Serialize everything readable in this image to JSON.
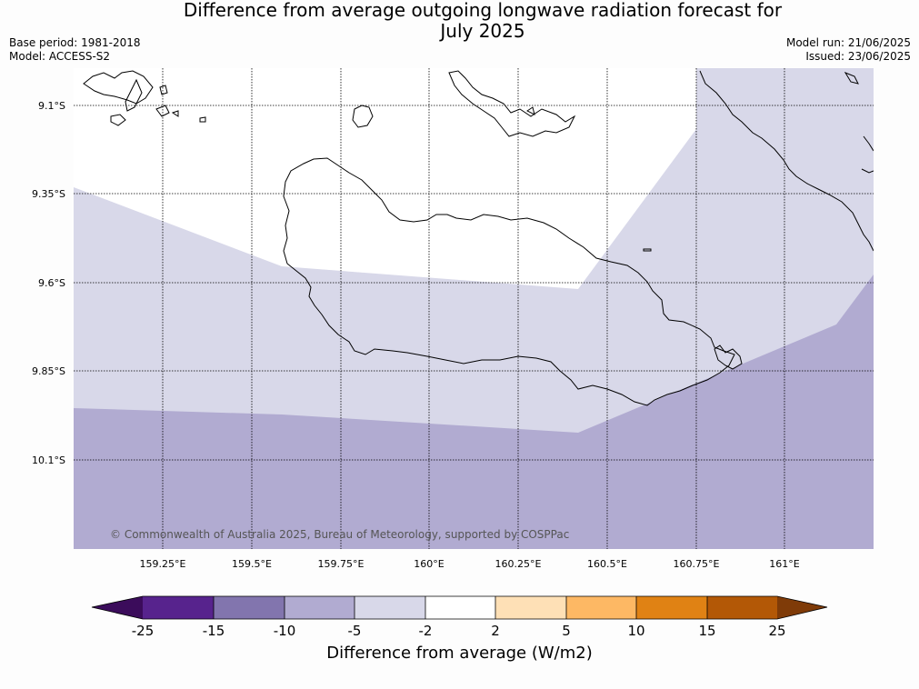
{
  "header": {
    "title_line1": "Difference from average outgoing longwave radiation forecast for",
    "title_line2": "July 2025",
    "base_period": "Base period: 1981-2018",
    "model": "Model: ACCESS-S2",
    "model_run": "Model run: 21/06/2025",
    "issued": "Issued: 23/06/2025"
  },
  "map": {
    "latitude_labels": [
      "9.1°S",
      "9.35°S",
      "9.6°S",
      "9.85°S",
      "10.1°S"
    ],
    "longitude_labels": [
      "159.25°E",
      "159.5°E",
      "159.75°E",
      "160°E",
      "160.25°E",
      "160.5°E",
      "160.75°E",
      "161°E"
    ],
    "credit": "© Commonwealth of Australia 2025, Bureau of Meteorology, supported by COSPPac",
    "field_colors": {
      "minus2_to_2": "#ffffff",
      "minus5_to_minus2": "#d8d8e9",
      "minus10_to_minus5": "#b1abd1"
    }
  },
  "colorbar": {
    "title": "Difference from average (W/m2)",
    "tick_labels": [
      "-25",
      "-15",
      "-10",
      "-5",
      "-2",
      "2",
      "5",
      "10",
      "15",
      "25"
    ],
    "colors": [
      "#3b0c5b",
      "#57238d",
      "#8275ae",
      "#b1abd1",
      "#d8d8e9",
      "#ffffff",
      "#fee0b6",
      "#fdb864",
      "#e08214",
      "#b35806",
      "#7f3b08"
    ]
  }
}
